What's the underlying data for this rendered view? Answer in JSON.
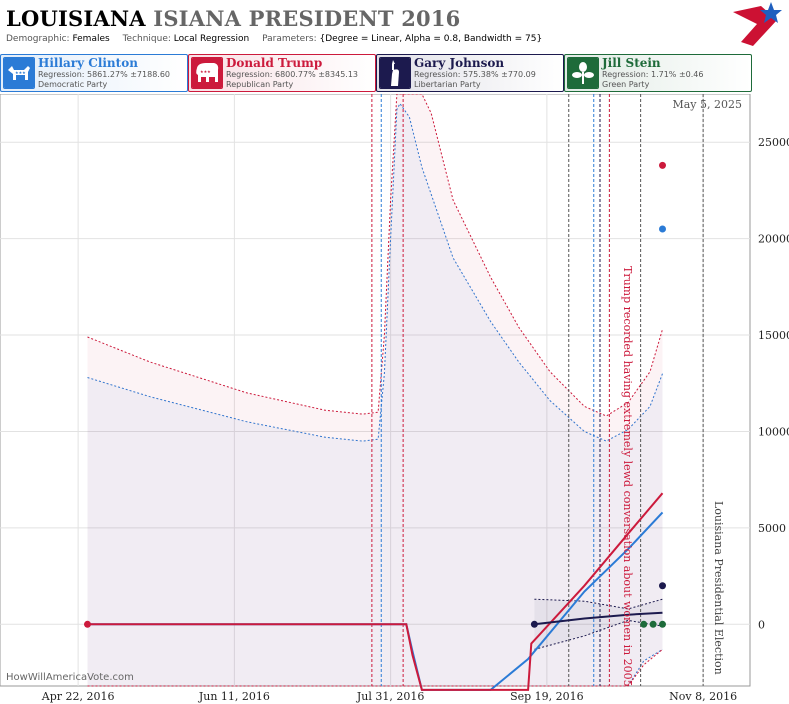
{
  "title": {
    "state": "LOUISIANA",
    "state_suffix": "ISIANA PRESIDENT 2016"
  },
  "params": {
    "demographic_label": "Demographic:",
    "demographic": "Females",
    "technique_label": "Technique:",
    "technique": "Local Regression",
    "parameters_label": "Parameters:",
    "parameters": "{Degree = Linear, Alpha = 0.8, Bandwidth = 75}"
  },
  "logo": {
    "icon": "stars-and-stripes-logo-icon",
    "colors": [
      "#cc1133",
      "#1f5fbf"
    ]
  },
  "candidates": [
    {
      "name": "Hillary Clinton",
      "regression": "Regression: 5861.27% ±7188.60",
      "party": "Democratic Party",
      "color": "#2b7bd6",
      "icon": "donkey-icon"
    },
    {
      "name": "Donald Trump",
      "regression": "Regression: 6800.77% ±8345.13",
      "party": "Republican Party",
      "color": "#cc1a3c",
      "icon": "elephant-icon"
    },
    {
      "name": "Gary Johnson",
      "regression": "Regression: 575.38% ±770.09",
      "party": "Libertarian Party",
      "color": "#1c1a4e",
      "icon": "statue-of-liberty-icon"
    },
    {
      "name": "Jill Stein",
      "regression": "Regression: 1.71% ±0.46",
      "party": "Green Party",
      "color": "#1e6b3a",
      "icon": "leaf-flower-icon"
    }
  ],
  "chart_data": {
    "type": "line",
    "date_label": "May 5, 2025",
    "watermark": "HowWillAmericaVote.com",
    "x_range": [
      "2016-03-28",
      "2016-11-23"
    ],
    "ylim": [
      -3200,
      27500
    ],
    "x_ticks": [
      {
        "label": "Apr 22, 2016",
        "date": "2016-04-22"
      },
      {
        "label": "Jun 11, 2016",
        "date": "2016-06-11"
      },
      {
        "label": "Jul 31, 2016",
        "date": "2016-07-31"
      },
      {
        "label": "Sep 19, 2016",
        "date": "2016-09-19"
      },
      {
        "label": "Nov 8, 2016",
        "date": "2016-11-08"
      }
    ],
    "y_ticks": [
      0,
      5000,
      10000,
      15000,
      20000,
      25000
    ],
    "annotations": [
      {
        "text": "Trump recorded having extremely lewd conversation about women in 2005",
        "date": "2016-10-07",
        "color": "#cc1a3c"
      },
      {
        "text": "Louisiana Presidential Election",
        "date": "2016-11-08",
        "color": "#444444"
      }
    ],
    "event_lines": [
      {
        "date": "2016-07-25",
        "color": "#cc1a3c"
      },
      {
        "date": "2016-07-28",
        "color": "#2b7bd6"
      },
      {
        "date": "2016-08-04",
        "color": "#cc1a3c"
      },
      {
        "date": "2016-09-26",
        "color": "#555555"
      },
      {
        "date": "2016-10-04",
        "color": "#2b7bd6"
      },
      {
        "date": "2016-10-06",
        "color": "#1c1a4e"
      },
      {
        "date": "2016-10-09",
        "color": "#cc1a3c"
      },
      {
        "date": "2016-10-19",
        "color": "#555555"
      },
      {
        "date": "2016-11-08",
        "color": "#555555"
      }
    ],
    "series": [
      {
        "name": "Hillary Clinton",
        "color": "#2b7bd6",
        "line": [
          [
            "2016-04-25",
            0
          ],
          [
            "2016-07-01",
            0
          ],
          [
            "2016-08-05",
            0
          ],
          [
            "2016-08-07",
            -1400
          ],
          [
            "2016-08-10",
            -3400
          ],
          [
            "2016-09-01",
            -3400
          ],
          [
            "2016-09-13",
            -1800
          ],
          [
            "2016-10-01",
            1700
          ],
          [
            "2016-10-15",
            3900
          ],
          [
            "2016-10-26",
            5800
          ]
        ],
        "band_upper": [
          [
            "2016-04-25",
            12800
          ],
          [
            "2016-05-15",
            11800
          ],
          [
            "2016-06-15",
            10500
          ],
          [
            "2016-07-10",
            9700
          ],
          [
            "2016-07-22",
            9500
          ],
          [
            "2016-07-27",
            9600
          ],
          [
            "2016-07-29",
            13000
          ],
          [
            "2016-07-31",
            20000
          ],
          [
            "2016-08-02",
            26700
          ],
          [
            "2016-08-03",
            27000
          ],
          [
            "2016-08-06",
            26300
          ],
          [
            "2016-08-10",
            23700
          ],
          [
            "2016-08-20",
            19000
          ],
          [
            "2016-09-01",
            15700
          ],
          [
            "2016-09-10",
            13600
          ],
          [
            "2016-09-20",
            11600
          ],
          [
            "2016-10-01",
            10000
          ],
          [
            "2016-10-08",
            9500
          ],
          [
            "2016-10-15",
            10100
          ],
          [
            "2016-10-22",
            11300
          ],
          [
            "2016-10-26",
            13000
          ]
        ],
        "band_lower": [
          [
            "2016-04-25",
            -3200
          ],
          [
            "2016-10-15",
            -3200
          ],
          [
            "2016-10-20",
            -1900
          ],
          [
            "2016-10-26",
            -1300
          ]
        ],
        "dot": [
          "2016-10-26",
          20500
        ]
      },
      {
        "name": "Donald Trump",
        "color": "#cc1a3c",
        "line": [
          [
            "2016-04-25",
            0
          ],
          [
            "2016-07-01",
            0
          ],
          [
            "2016-08-05",
            0
          ],
          [
            "2016-08-07",
            -1600
          ],
          [
            "2016-08-10",
            -3400
          ],
          [
            "2016-09-13",
            -3400
          ],
          [
            "2016-09-14",
            -1000
          ],
          [
            "2016-10-01",
            2000
          ],
          [
            "2016-10-15",
            4700
          ],
          [
            "2016-10-26",
            6800
          ]
        ],
        "band_upper": [
          [
            "2016-04-25",
            14900
          ],
          [
            "2016-05-15",
            13600
          ],
          [
            "2016-06-15",
            12000
          ],
          [
            "2016-07-10",
            11100
          ],
          [
            "2016-07-22",
            10900
          ],
          [
            "2016-07-27",
            11000
          ],
          [
            "2016-07-29",
            15000
          ],
          [
            "2016-07-31",
            22000
          ],
          [
            "2016-08-02",
            27500
          ],
          [
            "2016-08-10",
            27500
          ],
          [
            "2016-08-13",
            26500
          ],
          [
            "2016-08-20",
            22000
          ],
          [
            "2016-09-01",
            18000
          ],
          [
            "2016-09-10",
            15400
          ],
          [
            "2016-09-20",
            13100
          ],
          [
            "2016-10-01",
            11300
          ],
          [
            "2016-10-08",
            10800
          ],
          [
            "2016-10-15",
            11500
          ],
          [
            "2016-10-22",
            13100
          ],
          [
            "2016-10-26",
            15300
          ]
        ],
        "band_lower": [
          [
            "2016-04-25",
            -3200
          ],
          [
            "2016-10-15",
            -3200
          ],
          [
            "2016-10-20",
            -2100
          ],
          [
            "2016-10-26",
            -1300
          ]
        ],
        "dot": [
          "2016-10-26",
          23800
        ]
      },
      {
        "name": "Gary Johnson",
        "color": "#1c1a4e",
        "line": [
          [
            "2016-09-15",
            0
          ],
          [
            "2016-10-01",
            300
          ],
          [
            "2016-10-15",
            500
          ],
          [
            "2016-10-26",
            600
          ]
        ],
        "band_upper": [
          [
            "2016-09-15",
            1300
          ],
          [
            "2016-10-01",
            1200
          ],
          [
            "2016-10-15",
            800
          ],
          [
            "2016-10-26",
            1300
          ]
        ],
        "band_lower": [
          [
            "2016-09-15",
            -1300
          ],
          [
            "2016-10-01",
            -600
          ],
          [
            "2016-10-15",
            200
          ],
          [
            "2016-10-26",
            -100
          ]
        ],
        "dot": [
          "2016-10-26",
          2000
        ]
      },
      {
        "name": "Jill Stein",
        "color": "#1e6b3a",
        "line": [],
        "band_upper": [],
        "band_lower": [],
        "dot": [
          "2016-10-26",
          0
        ]
      }
    ],
    "start_points": [
      {
        "date": "2016-04-25",
        "value": 0,
        "color": "#cc1a3c"
      },
      {
        "date": "2016-09-15",
        "value": 0,
        "color": "#1c1a4e"
      },
      {
        "date": "2016-10-20",
        "value": 0,
        "color": "#1e6b3a"
      },
      {
        "date": "2016-10-23",
        "value": 0,
        "color": "#1e6b3a"
      }
    ]
  }
}
